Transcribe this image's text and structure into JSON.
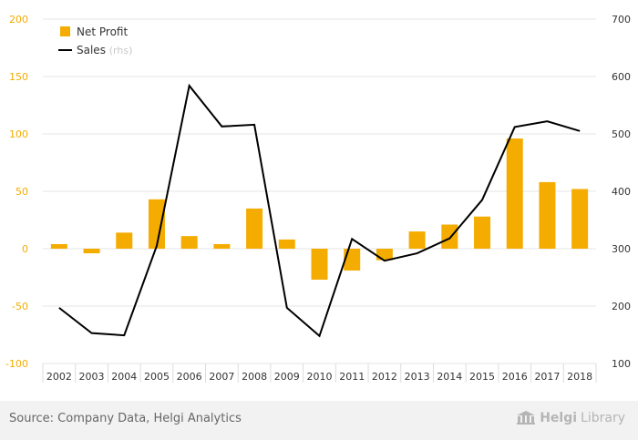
{
  "chart_data": {
    "type": "bar+line",
    "categories": [
      "2002",
      "2003",
      "2004",
      "2005",
      "2006",
      "2007",
      "2008",
      "2009",
      "2010",
      "2011",
      "2012",
      "2013",
      "2014",
      "2015",
      "2016",
      "2017",
      "2018"
    ],
    "series": [
      {
        "name": "Net Profit",
        "type": "bar",
        "axis": "left",
        "color": "#f5ac00",
        "values": [
          4,
          -4,
          14,
          43,
          11,
          4,
          35,
          8,
          -27,
          -19,
          -10,
          15,
          21,
          28,
          96,
          58,
          52
        ]
      },
      {
        "name": "Sales",
        "suffix": "(rhs)",
        "type": "line",
        "axis": "right",
        "color": "#000000",
        "values": [
          197,
          153,
          149,
          305,
          584,
          513,
          516,
          197,
          148,
          317,
          279,
          292,
          318,
          385,
          512,
          522,
          505
        ]
      }
    ],
    "y_left": {
      "min": -100,
      "max": 200,
      "ticks": [
        "-100",
        "-50",
        "0",
        "50",
        "100",
        "150",
        "200"
      ],
      "tick_color": "#f5ac00"
    },
    "y_right": {
      "min": 100,
      "max": 700,
      "ticks": [
        "100",
        "200",
        "300",
        "400",
        "500",
        "600",
        "700"
      ]
    },
    "legend": {
      "position": "top-left",
      "items": [
        {
          "label": "Net Profit",
          "suffix": ""
        },
        {
          "label": "Sales",
          "suffix": "(rhs)"
        }
      ]
    },
    "grid": true
  },
  "footer": {
    "source": "Source: Company Data, Helgi Analytics",
    "brand_bold": "Helgi",
    "brand_light": "Library"
  }
}
